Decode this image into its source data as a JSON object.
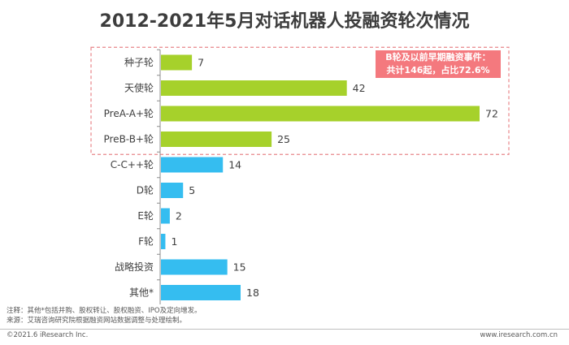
{
  "chart_data": {
    "type": "bar",
    "orientation": "horizontal",
    "title": "2012-2021年5月对话机器人投融资轮次情况",
    "categories": [
      "种子轮",
      "天使轮",
      "PreA-A+轮",
      "PreB-B+轮",
      "C-C++轮",
      "D轮",
      "E轮",
      "F轮",
      "战略投资",
      "其他*"
    ],
    "values": [
      7,
      42,
      72,
      25,
      14,
      5,
      2,
      1,
      15,
      18
    ],
    "highlight_group": {
      "categories": [
        "种子轮",
        "天使轮",
        "PreA-A+轮",
        "PreB-B+轮"
      ],
      "color": "#a6d12b",
      "border": "dashed",
      "border_color": "#e8868a"
    },
    "default_color": "#35bdf0",
    "annotation": [
      "B轮及以前早期融资事件：",
      "共计146起，占比72.6%"
    ],
    "annotation_color": "#f4797e",
    "grid": false,
    "legend": "none"
  },
  "notes": {
    "note": "注释：其他*包括并购、股权转让、股权融资、IPO及定向增发。",
    "source": "来源：艾瑞咨询研究院根据融资网站数据调整与处理绘制。"
  },
  "footer": {
    "copyright": "©2021.6 iResearch Inc.",
    "website": "www.iresearch.com.cn"
  }
}
